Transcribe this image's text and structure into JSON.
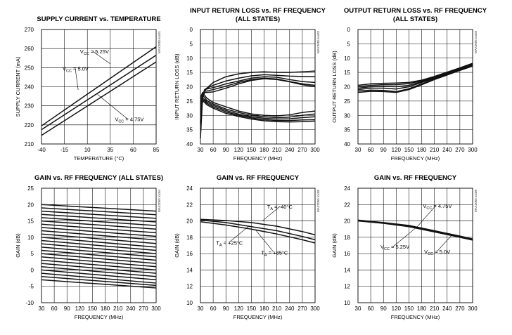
{
  "chart_data": [
    {
      "id": "c1",
      "type": "line",
      "title": [
        "SUPPLY CURRENT vs. TEMPERATURE"
      ],
      "xlabel": "TEMPERATURE (°C)",
      "ylabel": "SUPPLY CURRENT (mA)",
      "part_id": "MAX2055 toc01",
      "xlim": [
        -40,
        85
      ],
      "ylim": [
        210,
        270
      ],
      "xticks": [
        -40,
        -15,
        10,
        35,
        60,
        85
      ],
      "yticks": [
        210,
        220,
        230,
        240,
        250,
        260,
        270
      ],
      "grid": true,
      "series": [
        {
          "name": "VCC = 5.25V",
          "x": [
            -40,
            85
          ],
          "y": [
            219.5,
            261
          ]
        },
        {
          "name": "VCC = 5.0V",
          "x": [
            -40,
            85
          ],
          "y": [
            217.5,
            256.5
          ]
        },
        {
          "name": "VCC = 4.75V",
          "x": [
            -40,
            85
          ],
          "y": [
            214.5,
            253
          ]
        }
      ],
      "annotations": [
        {
          "text": "V",
          "sub": "CC",
          "rest": " = 5.25V",
          "at": [
            2,
            257.5
          ],
          "to": [
            35,
            252
          ]
        },
        {
          "text": "V",
          "sub": "CC",
          "rest": " = 5.0V",
          "at": [
            -17,
            248.5
          ],
          "to": [
            0,
            238.3
          ]
        },
        {
          "text": "V",
          "sub": "CC",
          "rest": " = 4.75V",
          "at": [
            40,
            222
          ],
          "to": [
            21,
            236
          ]
        }
      ]
    },
    {
      "id": "c2",
      "type": "line",
      "title": [
        "INPUT RETURN LOSS vs. RF FREQUENCY",
        "(ALL STATES)"
      ],
      "xlabel": "FREQUENCY (MHz)",
      "ylabel": "INPUT RETURN LOSS (dB)",
      "part_id": "MAX2055 toc02",
      "xlim": [
        30,
        300
      ],
      "ylim": [
        0,
        40
      ],
      "y_inverted": true,
      "xticks": [
        30,
        60,
        90,
        120,
        150,
        180,
        210,
        240,
        270,
        300
      ],
      "yticks": [
        0,
        5,
        10,
        15,
        20,
        25,
        30,
        35,
        40
      ],
      "grid": true,
      "series": [
        {
          "x": [
            30,
            35,
            40,
            45,
            60,
            90,
            120,
            150,
            180,
            210,
            240,
            270,
            300
          ],
          "y": [
            38,
            24,
            21.5,
            20.5,
            18.5,
            16.5,
            15.5,
            15,
            14.8,
            15,
            15,
            14.8,
            14.5
          ]
        },
        {
          "x": [
            30,
            35,
            40,
            45,
            60,
            90,
            120,
            150,
            180,
            210,
            240,
            270,
            300
          ],
          "y": [
            35,
            23.5,
            21,
            20.5,
            19.5,
            18,
            17,
            16.2,
            15.8,
            16,
            16.3,
            16.4,
            16.5
          ]
        },
        {
          "x": [
            30,
            35,
            40,
            45,
            60,
            90,
            120,
            150,
            180,
            210,
            240,
            270,
            300
          ],
          "y": [
            33,
            23,
            21,
            20.8,
            20.3,
            19,
            18,
            17,
            16.5,
            16.7,
            17.5,
            18.2,
            18.5
          ]
        },
        {
          "x": [
            30,
            35,
            40,
            45,
            60,
            90,
            120,
            150,
            180,
            210,
            240,
            270,
            300
          ],
          "y": [
            32,
            23,
            21.5,
            21.5,
            21,
            19.8,
            18.5,
            17.5,
            17,
            17.3,
            18.2,
            19,
            19.5
          ]
        },
        {
          "x": [
            30,
            35,
            40,
            45,
            60,
            90,
            120,
            150,
            180,
            210,
            240,
            270,
            300
          ],
          "y": [
            30,
            23.5,
            22,
            22,
            21.8,
            20.5,
            19,
            17.8,
            17.2,
            17.5,
            18.3,
            19.3,
            20
          ]
        },
        {
          "x": [
            30,
            35,
            40,
            45,
            60,
            90,
            120,
            150,
            180,
            210,
            240,
            270,
            300
          ],
          "y": [
            24,
            22,
            23,
            24,
            25.5,
            27,
            28.5,
            29.5,
            30,
            30.2,
            29.8,
            29,
            28.5
          ]
        },
        {
          "x": [
            30,
            35,
            40,
            45,
            60,
            90,
            120,
            150,
            180,
            210,
            240,
            270,
            300
          ],
          "y": [
            25,
            23,
            23.8,
            24.8,
            26,
            27.8,
            29,
            30,
            30.5,
            30.8,
            30.6,
            30,
            29.5
          ]
        },
        {
          "x": [
            30,
            35,
            40,
            45,
            60,
            90,
            120,
            150,
            180,
            210,
            240,
            270,
            300
          ],
          "y": [
            26,
            24,
            24.5,
            25.3,
            26.5,
            28.3,
            29.6,
            30.5,
            31,
            31.3,
            31.2,
            30.8,
            30.5
          ]
        },
        {
          "x": [
            30,
            35,
            40,
            45,
            60,
            90,
            120,
            150,
            180,
            210,
            240,
            270,
            300
          ],
          "y": [
            27,
            24.5,
            25,
            25.8,
            27,
            28.8,
            30,
            30.9,
            31.5,
            31.8,
            31.8,
            31.6,
            31.5
          ]
        },
        {
          "x": [
            30,
            35,
            40,
            45,
            60,
            90,
            120,
            150,
            180,
            210,
            240,
            270,
            300
          ],
          "y": [
            28,
            25,
            25.5,
            26.3,
            27.5,
            29.3,
            30.4,
            31.3,
            31.9,
            32.2,
            32.3,
            32.2,
            32
          ]
        }
      ]
    },
    {
      "id": "c3",
      "type": "line",
      "title": [
        "OUTPUT RETURN LOSS vs. RF FREQUENCY",
        "(ALL STATES)"
      ],
      "xlabel": "FREQUENCY (MHz)",
      "ylabel": "OUTPUT RETURN LOSS (dB)",
      "part_id": "MAX2055 toc03",
      "xlim": [
        30,
        300
      ],
      "ylim": [
        0,
        40
      ],
      "y_inverted": true,
      "xticks": [
        30,
        60,
        90,
        120,
        150,
        180,
        210,
        240,
        270,
        300
      ],
      "yticks": [
        0,
        5,
        10,
        15,
        20,
        25,
        30,
        35,
        40
      ],
      "grid": true,
      "series": [
        {
          "x": [
            30,
            60,
            90,
            120,
            150,
            180,
            210,
            240,
            270,
            300
          ],
          "y": [
            21,
            20.5,
            20.5,
            20.8,
            20,
            18.5,
            17,
            15.5,
            14,
            12.5
          ]
        },
        {
          "x": [
            30,
            60,
            90,
            120,
            150,
            180,
            210,
            240,
            270,
            300
          ],
          "y": [
            20.5,
            20,
            19.8,
            20,
            19.5,
            18.3,
            16.8,
            15.3,
            13.8,
            12.2
          ]
        },
        {
          "x": [
            30,
            60,
            90,
            120,
            150,
            180,
            210,
            240,
            270,
            300
          ],
          "y": [
            20,
            19.5,
            19.3,
            19.3,
            18.9,
            18,
            16.6,
            15.1,
            13.6,
            12
          ]
        },
        {
          "x": [
            30,
            60,
            90,
            120,
            150,
            180,
            210,
            240,
            270,
            300
          ],
          "y": [
            21.5,
            21.2,
            21.3,
            21.7,
            20.7,
            19,
            17.3,
            15.7,
            14.2,
            12.7
          ]
        },
        {
          "x": [
            30,
            60,
            90,
            120,
            150,
            180,
            210,
            240,
            270,
            300
          ],
          "y": [
            19.5,
            19,
            18.8,
            18.7,
            18.5,
            17.7,
            16.4,
            14.9,
            13.4,
            11.8
          ]
        },
        {
          "x": [
            30,
            60,
            90,
            120,
            150,
            180,
            210,
            240,
            270,
            300
          ],
          "y": [
            22,
            21.6,
            21.7,
            22,
            21,
            19.3,
            17.5,
            15.9,
            14.3,
            12.8
          ]
        }
      ]
    },
    {
      "id": "c4",
      "type": "line",
      "title": [
        "GAIN vs. RF FREQUENCY (ALL STATES)"
      ],
      "xlabel": "FREQUENCY (MHz)",
      "ylabel": "GAIN (dB)",
      "part_id": "MAX2055 toc04",
      "xlim": [
        30,
        300
      ],
      "ylim": [
        -10,
        25
      ],
      "xticks": [
        30,
        60,
        90,
        120,
        150,
        180,
        210,
        240,
        270,
        300
      ],
      "yticks": [
        -10,
        -5,
        0,
        5,
        10,
        15,
        20,
        25
      ],
      "grid": true,
      "series": [
        {
          "x": [
            30,
            300
          ],
          "y": [
            20,
            18
          ]
        },
        {
          "x": [
            30,
            300
          ],
          "y": [
            19,
            16.9
          ]
        },
        {
          "x": [
            30,
            300
          ],
          "y": [
            18,
            15.8
          ]
        },
        {
          "x": [
            30,
            300
          ],
          "y": [
            17,
            14.7
          ]
        },
        {
          "x": [
            30,
            300
          ],
          "y": [
            16,
            13.6
          ]
        },
        {
          "x": [
            30,
            300
          ],
          "y": [
            15,
            12.5
          ]
        },
        {
          "x": [
            30,
            300
          ],
          "y": [
            14,
            11.4
          ]
        },
        {
          "x": [
            30,
            300
          ],
          "y": [
            13,
            10.3
          ]
        },
        {
          "x": [
            30,
            300
          ],
          "y": [
            12,
            9.2
          ]
        },
        {
          "x": [
            30,
            300
          ],
          "y": [
            11,
            8.1
          ]
        },
        {
          "x": [
            30,
            300
          ],
          "y": [
            10,
            7
          ]
        },
        {
          "x": [
            30,
            300
          ],
          "y": [
            9,
            6
          ]
        },
        {
          "x": [
            30,
            300
          ],
          "y": [
            8,
            5
          ]
        },
        {
          "x": [
            30,
            300
          ],
          "y": [
            7,
            4
          ]
        },
        {
          "x": [
            30,
            300
          ],
          "y": [
            6,
            3
          ]
        },
        {
          "x": [
            30,
            300
          ],
          "y": [
            5,
            2
          ]
        },
        {
          "x": [
            30,
            300
          ],
          "y": [
            4,
            1
          ]
        },
        {
          "x": [
            30,
            300
          ],
          "y": [
            3,
            0
          ]
        },
        {
          "x": [
            30,
            300
          ],
          "y": [
            2,
            -1
          ]
        },
        {
          "x": [
            30,
            300
          ],
          "y": [
            1,
            -2
          ]
        },
        {
          "x": [
            30,
            300
          ],
          "y": [
            0,
            -3
          ]
        },
        {
          "x": [
            30,
            300
          ],
          "y": [
            -1,
            -4
          ]
        },
        {
          "x": [
            30,
            300
          ],
          "y": [
            -2,
            -4.7
          ]
        },
        {
          "x": [
            30,
            300
          ],
          "y": [
            -3,
            -5.5
          ]
        }
      ]
    },
    {
      "id": "c5",
      "type": "line",
      "title": [
        "GAIN vs. RF FREQUENCY"
      ],
      "xlabel": "FREQUENCY (MHz)",
      "ylabel": "GAIN (dB)",
      "part_id": "MAX2055 toc05",
      "xlim": [
        30,
        300
      ],
      "ylim": [
        10,
        24
      ],
      "xticks": [
        30,
        60,
        90,
        120,
        150,
        180,
        210,
        240,
        270,
        300
      ],
      "yticks": [
        10,
        12,
        14,
        16,
        18,
        20,
        22,
        24
      ],
      "grid": true,
      "series": [
        {
          "name": "TA = -40°C",
          "x": [
            30,
            90,
            150,
            210,
            270,
            300
          ],
          "y": [
            20.2,
            20.05,
            19.8,
            19.35,
            18.7,
            18.3
          ]
        },
        {
          "name": "TA = +25°C",
          "x": [
            30,
            90,
            150,
            210,
            270,
            300
          ],
          "y": [
            20.1,
            19.8,
            19.3,
            18.8,
            18.1,
            17.7
          ]
        },
        {
          "name": "TA = +85°C",
          "x": [
            30,
            90,
            150,
            210,
            270,
            300
          ],
          "y": [
            19.9,
            19.5,
            19.0,
            18.4,
            17.7,
            17.3
          ]
        }
      ],
      "annotations": [
        {
          "text": "T",
          "sub": "A",
          "rest": " = -40°C",
          "at": [
            187,
            21.5
          ],
          "to": [
            176,
            20.0
          ]
        },
        {
          "text": "T",
          "sub": "A",
          "rest": " = +25°C",
          "at": [
            67,
            17.1
          ],
          "to": [
            145,
            19.4
          ]
        },
        {
          "text": "T",
          "sub": "A",
          "rest": " = +85°C",
          "at": [
            173,
            15.9
          ],
          "to": [
            160,
            18.9
          ]
        }
      ]
    },
    {
      "id": "c6",
      "type": "line",
      "title": [
        "GAIN vs. RF FREQUENCY"
      ],
      "xlabel": "FREQUENCY (MHz)",
      "ylabel": "GAIN (dB)",
      "part_id": "MAX2055 toc06",
      "xlim": [
        30,
        300
      ],
      "ylim": [
        10,
        24
      ],
      "xticks": [
        30,
        60,
        90,
        120,
        150,
        180,
        210,
        240,
        270,
        300
      ],
      "yticks": [
        10,
        12,
        14,
        16,
        18,
        20,
        22,
        24
      ],
      "grid": true,
      "series": [
        {
          "name": "VCC = 4.75V",
          "x": [
            30,
            90,
            150,
            210,
            270,
            300
          ],
          "y": [
            20.1,
            19.8,
            19.45,
            18.8,
            18.15,
            17.8
          ]
        },
        {
          "name": "VCC = 5.25V",
          "x": [
            30,
            90,
            150,
            210,
            270,
            300
          ],
          "y": [
            20.05,
            19.75,
            19.35,
            18.7,
            18.05,
            17.7
          ]
        },
        {
          "name": "VCC = 5.0V",
          "x": [
            30,
            90,
            150,
            210,
            270,
            300
          ],
          "y": [
            20.0,
            19.7,
            19.3,
            18.65,
            18.0,
            17.65
          ]
        }
      ],
      "annotations": [
        {
          "text": "V",
          "sub": "CC",
          "rest": " = 4.75V",
          "at": [
            183,
            21.6
          ],
          "to": [
            168,
            19.2
          ]
        },
        {
          "text": "V",
          "sub": "CC",
          "rest": " = 5.25V",
          "at": [
            83,
            16.6
          ],
          "to": [
            165,
            19.1
          ]
        },
        {
          "text": "V",
          "sub": "CC",
          "rest": " = 5.0V",
          "at": [
            186,
            16.0
          ],
          "to": [
            250,
            18.2
          ]
        }
      ]
    }
  ]
}
